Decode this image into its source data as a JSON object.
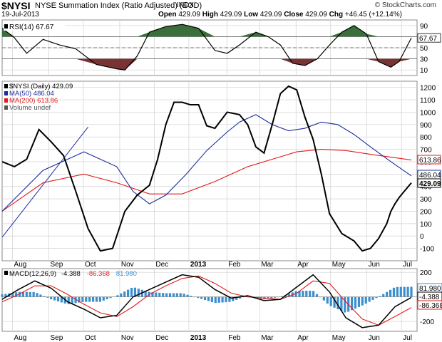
{
  "header": {
    "symbol": "$NYSI",
    "name": "NYSE Summation Index (Ratio Adjusted) (EOD)",
    "exchange": "INDX",
    "date": "19-Jul-2013",
    "open_label": "Open",
    "open": "429.09",
    "high_label": "High",
    "high": "429.09",
    "low_label": "Low",
    "low": "429.09",
    "close_label": "Close",
    "close": "429.09",
    "chg_label": "Chg",
    "chg": "+46.45 (+12.14%)",
    "copyright": "© StockCharts.com"
  },
  "colors": {
    "price": "#000000",
    "ma50": "#1c2c9c",
    "ma200": "#e21b1b",
    "rsi_over": "#3a6e3a",
    "rsi_under": "#7a3333",
    "macd_hist": "#3b8fcf",
    "grid": "#d0d0d0"
  },
  "chart_data": [
    {
      "type": "line",
      "panel": "rsi",
      "legend": "RSI(14) 67.67",
      "ylim": [
        0,
        100
      ],
      "yticks": [
        10,
        30,
        50,
        70,
        90
      ],
      "ref_lines": [
        30,
        50,
        70
      ],
      "value_tag": "67.67",
      "series": [
        {
          "name": "RSI(14)",
          "x": [
            0,
            3,
            6,
            10,
            14,
            18,
            23,
            28,
            30,
            33,
            36,
            40,
            44,
            48,
            52,
            55,
            58,
            62,
            65,
            68,
            71,
            74,
            77,
            80,
            83,
            86,
            89,
            92,
            95,
            97,
            100
          ],
          "values": [
            85,
            68,
            40,
            65,
            55,
            48,
            20,
            12,
            10,
            35,
            78,
            88,
            92,
            85,
            45,
            40,
            55,
            78,
            70,
            55,
            22,
            18,
            30,
            55,
            78,
            90,
            75,
            25,
            15,
            25,
            67.67
          ]
        }
      ]
    },
    {
      "type": "line",
      "panel": "price",
      "legend": [
        "$NYSI (Daily) 429.09",
        "MA(50) 486.04",
        "MA(200) 613.86",
        "Volume undef"
      ],
      "ylim": [
        -200,
        1250
      ],
      "yticks": [
        -100,
        0,
        100,
        200,
        300,
        400,
        500,
        600,
        700,
        800,
        900,
        1000,
        1100,
        1200
      ],
      "tags": [
        "613.86",
        "486.04",
        "429.09"
      ],
      "series": [
        {
          "name": "$NYSI (Daily)",
          "x": [
            0,
            3,
            6,
            9,
            12,
            15,
            18,
            21,
            24,
            27,
            30,
            33,
            36,
            38,
            40,
            42,
            44,
            46,
            48,
            50,
            52,
            55,
            58,
            60,
            62,
            64,
            66,
            68,
            70,
            72,
            74,
            76,
            78,
            80,
            83,
            86,
            88,
            90,
            92,
            94,
            95,
            96,
            97,
            98,
            100
          ],
          "values": [
            600,
            560,
            620,
            860,
            760,
            650,
            360,
            60,
            -120,
            -100,
            200,
            330,
            410,
            620,
            900,
            1080,
            1080,
            1060,
            1060,
            890,
            870,
            1000,
            980,
            900,
            720,
            670,
            900,
            1150,
            1210,
            1180,
            960,
            780,
            500,
            180,
            20,
            -40,
            -120,
            -100,
            -20,
            100,
            200,
            260,
            310,
            350,
            429.09
          ]
        },
        {
          "name": "MA(50)",
          "x": [
            0,
            10,
            20,
            28,
            32,
            36,
            40,
            45,
            50,
            55,
            58,
            62,
            66,
            70,
            74,
            78,
            82,
            86,
            90,
            95,
            100
          ],
          "values": [
            200,
            530,
            680,
            560,
            360,
            260,
            330,
            500,
            690,
            840,
            920,
            980,
            900,
            850,
            870,
            920,
            900,
            820,
            720,
            600,
            486.04
          ]
        },
        {
          "name": "MA(200)",
          "x": [
            0,
            10,
            20,
            28,
            36,
            44,
            52,
            60,
            66,
            72,
            78,
            84,
            90,
            100
          ],
          "values": [
            200,
            430,
            500,
            430,
            340,
            340,
            440,
            560,
            620,
            680,
            700,
            690,
            660,
            613.86
          ]
        }
      ]
    },
    {
      "type": "line",
      "panel": "macd",
      "legend": [
        "MACD(12,26,9)",
        "-4.388",
        "-86.368",
        "81.980"
      ],
      "ylim": [
        -280,
        230
      ],
      "yticks": [
        -200,
        0,
        200
      ],
      "tags": [
        "81.980",
        "-4.388",
        "-86.368"
      ],
      "series": [
        {
          "name": "MACD",
          "x": [
            0,
            4,
            8,
            12,
            16,
            20,
            24,
            28,
            32,
            36,
            40,
            44,
            48,
            52,
            56,
            60,
            64,
            68,
            72,
            76,
            80,
            84,
            88,
            92,
            96,
            100
          ],
          "values": [
            -20,
            60,
            130,
            70,
            -40,
            -100,
            -170,
            -150,
            0,
            60,
            120,
            180,
            160,
            60,
            -10,
            10,
            -30,
            -20,
            80,
            180,
            40,
            -170,
            -250,
            -230,
            -80,
            -4.388
          ]
        },
        {
          "name": "Signal",
          "x": [
            0,
            4,
            8,
            12,
            16,
            20,
            24,
            28,
            32,
            36,
            40,
            44,
            48,
            52,
            56,
            60,
            64,
            68,
            72,
            76,
            80,
            84,
            88,
            92,
            96,
            100
          ],
          "values": [
            -40,
            20,
            90,
            90,
            20,
            -60,
            -130,
            -160,
            -80,
            20,
            90,
            150,
            170,
            110,
            30,
            0,
            -10,
            -20,
            30,
            130,
            110,
            -40,
            -180,
            -230,
            -160,
            -86.368
          ]
        },
        {
          "name": "Histogram",
          "x": [
            0,
            4,
            8,
            12,
            16,
            20,
            24,
            28,
            32,
            36,
            40,
            44,
            48,
            52,
            56,
            60,
            64,
            68,
            72,
            76,
            80,
            84,
            88,
            92,
            96,
            100
          ],
          "values": [
            20,
            40,
            40,
            -20,
            -60,
            -40,
            -40,
            10,
            80,
            40,
            30,
            30,
            -10,
            -50,
            -40,
            10,
            -20,
            0,
            50,
            50,
            -70,
            -130,
            -70,
            0,
            80,
            81.98
          ]
        }
      ]
    }
  ],
  "xaxis": {
    "ticks": [
      {
        "label": "Aug",
        "pos": 3
      },
      {
        "label": "Sep",
        "pos": 13.5
      },
      {
        "label": "Oct",
        "pos": 23.5
      },
      {
        "label": "Nov",
        "pos": 34
      },
      {
        "label": "Dec",
        "pos": 44
      },
      {
        "label": "2013",
        "pos": 54,
        "bold": true
      },
      {
        "label": "Feb",
        "pos": 65
      },
      {
        "label": "Mar",
        "pos": 74.5
      },
      {
        "label": "Apr",
        "pos": 85
      },
      {
        "label": "May",
        "pos": 95
      },
      {
        "label": "Jun",
        "pos": 105.5
      },
      {
        "label": "Jul",
        "pos": 115.5
      }
    ],
    "range": [
      0,
      120
    ]
  }
}
